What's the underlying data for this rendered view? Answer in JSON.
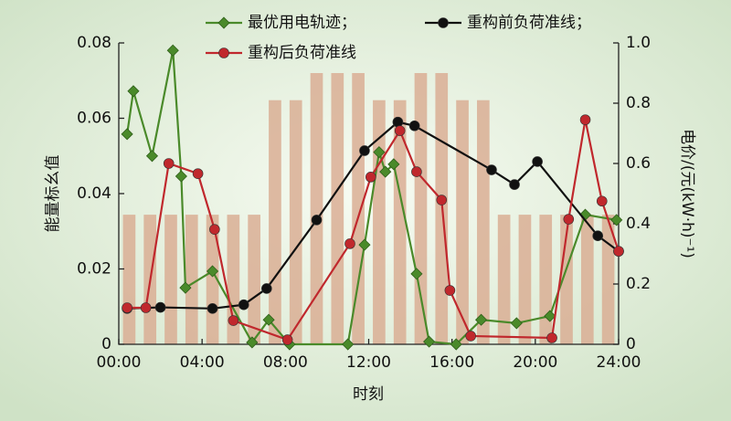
{
  "chart_data": {
    "type": "line",
    "xlabel": "时刻",
    "ylabel": "能量标幺值",
    "y2label": "电价/(元(kW·h)⁻¹)",
    "xlim": [
      0,
      24
    ],
    "xticks": [
      {
        "value": 0,
        "label": "00:00"
      },
      {
        "value": 4,
        "label": "04:00"
      },
      {
        "value": 8,
        "label": "08:00"
      },
      {
        "value": 12,
        "label": "12:00"
      },
      {
        "value": 16,
        "label": "16:00"
      },
      {
        "value": 20,
        "label": "20:00"
      },
      {
        "value": 24,
        "label": "24:00"
      }
    ],
    "ylim": [
      0,
      0.08
    ],
    "yticks": [
      0,
      0.02,
      0.04,
      0.06,
      0.08
    ],
    "y2lim": [
      0,
      1
    ],
    "y2ticks": [
      0,
      0.2,
      0.4,
      0.6,
      0.8,
      {
        "value": 1,
        "label": "1.0"
      }
    ],
    "bars": {
      "axis": "y2",
      "color": "#d9ae94",
      "x": [
        0.5,
        1.5,
        2.5,
        3.5,
        4.5,
        5.5,
        6.5,
        7.5,
        8.5,
        9.5,
        10.5,
        11.5,
        12.5,
        13.5,
        14.5,
        15.5,
        16.5,
        17.5,
        18.5,
        19.5,
        20.5,
        21.5,
        22.5,
        23.5
      ],
      "values": [
        0.43,
        0.43,
        0.43,
        0.43,
        0.43,
        0.43,
        0.43,
        0.81,
        0.81,
        0.9,
        0.9,
        0.9,
        0.81,
        0.81,
        0.9,
        0.9,
        0.81,
        0.81,
        0.43,
        0.43,
        0.43,
        0.43,
        0.43,
        0.43
      ]
    },
    "series": [
      {
        "name": "最优用电轨迹；",
        "color": "#4a8a2a",
        "marker": "diamond",
        "x": [
          0.4,
          0.7,
          1.6,
          2.6,
          3.0,
          3.2,
          4.5,
          6.4,
          7.2,
          8.2,
          11.0,
          11.8,
          12.5,
          12.8,
          13.2,
          14.3,
          14.9,
          16.2,
          17.4,
          19.1,
          20.7,
          22.4,
          23.9
        ],
        "values": [
          0.0558,
          0.0672,
          0.05,
          0.078,
          0.0446,
          0.015,
          0.0194,
          0.0005,
          0.0065,
          0,
          0,
          0.0264,
          0.051,
          0.0458,
          0.0478,
          0.0187,
          0.0007,
          0,
          0.0065,
          0.0056,
          0.0075,
          0.0344,
          0.033
        ]
      },
      {
        "name": "重构前负荷准线；",
        "color": "#111111",
        "marker": "circle",
        "x": [
          0.4,
          2.0,
          4.5,
          6.0,
          7.1,
          9.5,
          11.8,
          13.4,
          14.2,
          17.9,
          19.0,
          20.1,
          23.0,
          24.0
        ],
        "values": [
          0.0095,
          0.0098,
          0.0095,
          0.0105,
          0.0148,
          0.033,
          0.0514,
          0.059,
          0.058,
          0.0463,
          0.0424,
          0.0485,
          0.0288,
          0.0247
        ]
      },
      {
        "name": "重构后负荷准线",
        "color": "#c0282d",
        "marker": "circle",
        "x": [
          0.4,
          1.3,
          2.4,
          3.8,
          4.6,
          5.5,
          8.1,
          11.1,
          12.1,
          13.5,
          14.3,
          15.5,
          15.9,
          16.9,
          20.8,
          21.6,
          22.4,
          23.2,
          24.0
        ],
        "values": [
          0.0097,
          0.0097,
          0.048,
          0.0453,
          0.0305,
          0.0063,
          0.0012,
          0.0267,
          0.0444,
          0.0567,
          0.0458,
          0.0383,
          0.0143,
          0.0022,
          0.0017,
          0.0332,
          0.0596,
          0.038,
          0.0247
        ]
      }
    ]
  }
}
